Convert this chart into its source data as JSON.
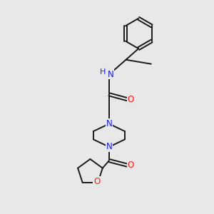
{
  "background_color": "#e8e8e8",
  "bond_color": "#1a1a1a",
  "nitrogen_color": "#1a1aff",
  "oxygen_color": "#ff1a1a",
  "carbon_color": "#1a1a1a",
  "fig_width": 3.0,
  "fig_height": 3.0,
  "dpi": 100,
  "lw": 1.4,
  "fs": 8.5,
  "xlim": [
    0,
    10
  ],
  "ylim": [
    0,
    10
  ]
}
